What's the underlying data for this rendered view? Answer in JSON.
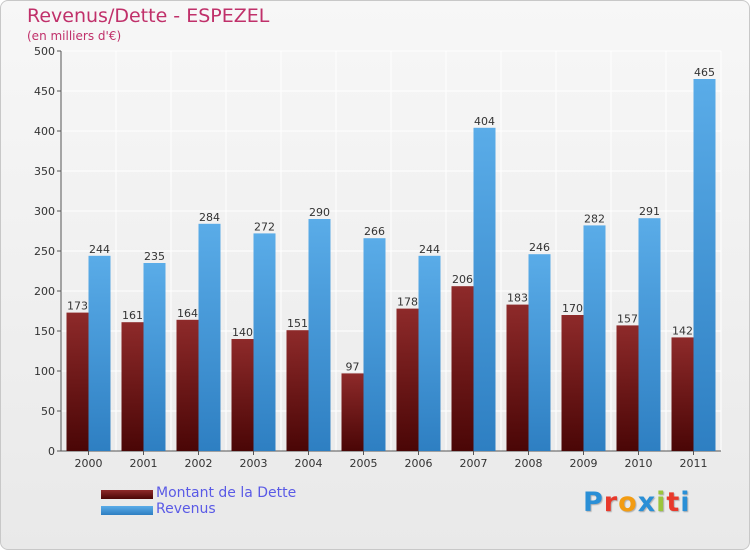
{
  "chart_data": {
    "type": "bar",
    "title": "Revenus/Dette - ESPEZEL",
    "subtitle": "(en milliers d'€)",
    "categories": [
      "2000",
      "2001",
      "2002",
      "2003",
      "2004",
      "2005",
      "2006",
      "2007",
      "2008",
      "2009",
      "2010",
      "2011"
    ],
    "series": [
      {
        "name": "Montant de la Dette",
        "values": [
          173,
          161,
          164,
          140,
          151,
          97,
          178,
          206,
          183,
          170,
          157,
          142
        ],
        "color": "#7a1a1a"
      },
      {
        "name": "Revenus",
        "values": [
          244,
          235,
          284,
          272,
          290,
          266,
          244,
          404,
          246,
          282,
          291,
          465
        ],
        "color": "#4aa0e0"
      }
    ],
    "yticks": [
      0,
      50,
      100,
      150,
      200,
      250,
      300,
      350,
      400,
      450,
      500
    ],
    "ylim": [
      0,
      500
    ],
    "grid": true,
    "legend_position": "bottom-left"
  },
  "brand": {
    "logo_text": "Proxiti",
    "letter_colors": [
      "#2a8fd6",
      "#e8392b",
      "#f39c12",
      "#2a8fd6",
      "#9bc53d",
      "#e8392b",
      "#2a8fd6"
    ]
  }
}
